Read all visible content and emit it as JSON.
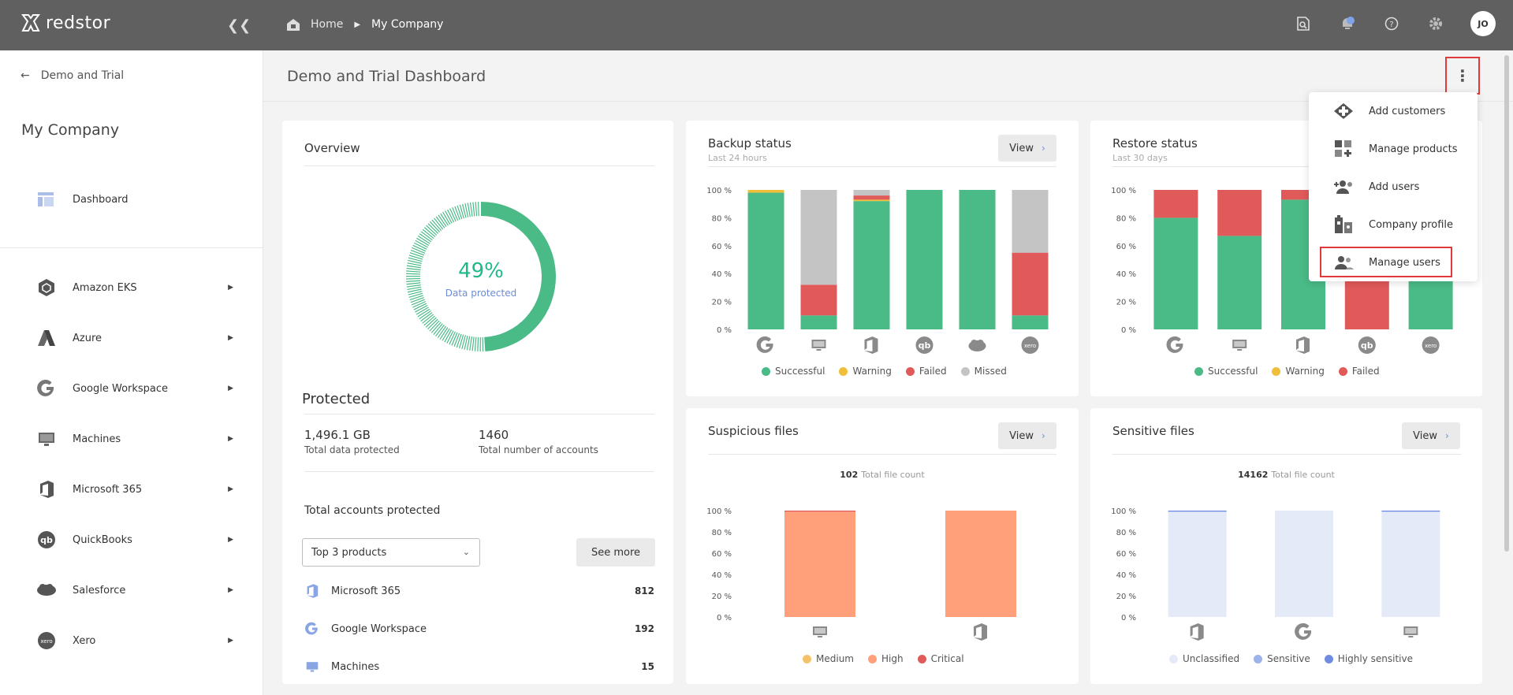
{
  "app": {
    "brand": "redstor"
  },
  "breadcrumb": {
    "home": "Home",
    "current": "My Company"
  },
  "topbar": {
    "avatar_initials": "JO",
    "icons": [
      "search-icon",
      "notifications-icon",
      "help-icon",
      "settings-icon"
    ]
  },
  "sidebar": {
    "back_label": "Demo and Trial",
    "company_name": "My Company",
    "dashboard_label": "Dashboard",
    "items": [
      {
        "label": "Amazon EKS",
        "icon": "amazon-eks-icon"
      },
      {
        "label": "Azure",
        "icon": "azure-icon"
      },
      {
        "label": "Google Workspace",
        "icon": "google-icon"
      },
      {
        "label": "Machines",
        "icon": "monitor-icon"
      },
      {
        "label": "Microsoft 365",
        "icon": "office-icon"
      },
      {
        "label": "QuickBooks",
        "icon": "quickbooks-icon"
      },
      {
        "label": "Salesforce",
        "icon": "salesforce-icon"
      },
      {
        "label": "Xero",
        "icon": "xero-icon"
      }
    ]
  },
  "main": {
    "title": "Demo and Trial Dashboard"
  },
  "overview": {
    "title": "Overview",
    "donut_percent": "49%",
    "donut_label": "Data protected",
    "donut_value": 0.49,
    "protected_title": "Protected",
    "total_data_value": "1,496.1 GB",
    "total_data_label": "Total data protected",
    "total_accounts_value": "1460",
    "total_accounts_label": "Total number of accounts",
    "accounts_title": "Total accounts protected",
    "select_value": "Top 3 products",
    "see_more": "See more",
    "products": [
      {
        "name": "Microsoft 365",
        "count": "812"
      },
      {
        "name": "Google Workspace",
        "count": "192"
      },
      {
        "name": "Machines",
        "count": "15"
      }
    ]
  },
  "common": {
    "view_label": "View",
    "total_file_count": "Total file count"
  },
  "colors": {
    "successful": "#4aba86",
    "warning": "#efbf3a",
    "failed": "#e05a5a",
    "missed": "#c4c4c4",
    "medium": "#f5c26b",
    "high": "#ffa07a",
    "critical": "#e05a5a",
    "unclassified": "#e4eaf7",
    "sensitive": "#9db3ea",
    "highly_sensitive": "#6f8ce0"
  },
  "chart_data": [
    {
      "id": "backup",
      "type": "bar",
      "stacked": true,
      "title": "Backup status",
      "subtitle": "Last 24 hours",
      "ylim": [
        0,
        100
      ],
      "yticks": [
        "0 %",
        "20 %",
        "40 %",
        "60 %",
        "80 %",
        "100 %"
      ],
      "categories": [
        "google-icon",
        "monitor-icon",
        "office-icon",
        "quickbooks-icon",
        "salesforce-icon",
        "xero-icon"
      ],
      "series": [
        {
          "name": "Successful",
          "values": [
            98,
            10,
            92,
            100,
            100,
            10
          ]
        },
        {
          "name": "Warning",
          "values": [
            2,
            0,
            1,
            0,
            0,
            0
          ]
        },
        {
          "name": "Failed",
          "values": [
            0,
            22,
            3,
            0,
            0,
            45
          ]
        },
        {
          "name": "Missed",
          "values": [
            0,
            68,
            4,
            0,
            0,
            45
          ]
        }
      ]
    },
    {
      "id": "restore",
      "type": "bar",
      "stacked": true,
      "title": "Restore status",
      "subtitle": "Last 30 days",
      "ylim": [
        0,
        100
      ],
      "yticks": [
        "0 %",
        "20 %",
        "40 %",
        "60 %",
        "80 %",
        "100 %"
      ],
      "categories": [
        "google-icon",
        "monitor-icon",
        "office-icon",
        "quickbooks-icon",
        "xero-icon"
      ],
      "series": [
        {
          "name": "Successful",
          "values": [
            80,
            67,
            93,
            0,
            100
          ]
        },
        {
          "name": "Warning",
          "values": [
            0,
            0,
            0,
            0,
            0
          ]
        },
        {
          "name": "Failed",
          "values": [
            20,
            33,
            7,
            100,
            0
          ]
        }
      ]
    },
    {
      "id": "suspicious",
      "type": "bar",
      "stacked": true,
      "title": "Suspicious files",
      "total": "102",
      "ylim": [
        0,
        100
      ],
      "yticks": [
        "0 %",
        "20 %",
        "40 %",
        "60 %",
        "80 %",
        "100 %"
      ],
      "categories": [
        "monitor-icon",
        "office-icon"
      ],
      "series": [
        {
          "name": "Medium",
          "values": [
            0,
            0
          ]
        },
        {
          "name": "High",
          "values": [
            99,
            100
          ]
        },
        {
          "name": "Critical",
          "values": [
            1,
            0
          ]
        }
      ]
    },
    {
      "id": "sensitive",
      "type": "bar",
      "stacked": true,
      "title": "Sensitive files",
      "total": "14162",
      "ylim": [
        0,
        100
      ],
      "yticks": [
        "0 %",
        "20 %",
        "40 %",
        "60 %",
        "80 %",
        "100 %"
      ],
      "categories": [
        "office-icon",
        "google-icon",
        "monitor-icon"
      ],
      "series": [
        {
          "name": "Unclassified",
          "values": [
            99,
            100,
            99
          ]
        },
        {
          "name": "Sensitive",
          "values": [
            0,
            0,
            0
          ]
        },
        {
          "name": "Highly sensitive",
          "values": [
            1,
            0,
            1
          ]
        }
      ]
    }
  ],
  "menu": {
    "items": [
      {
        "label": "Add customers",
        "icon": "add-customers-icon"
      },
      {
        "label": "Manage products",
        "icon": "manage-products-icon"
      },
      {
        "label": "Add users",
        "icon": "add-users-icon"
      },
      {
        "label": "Company profile",
        "icon": "company-profile-icon"
      },
      {
        "label": "Manage users",
        "icon": "manage-users-icon"
      }
    ]
  }
}
